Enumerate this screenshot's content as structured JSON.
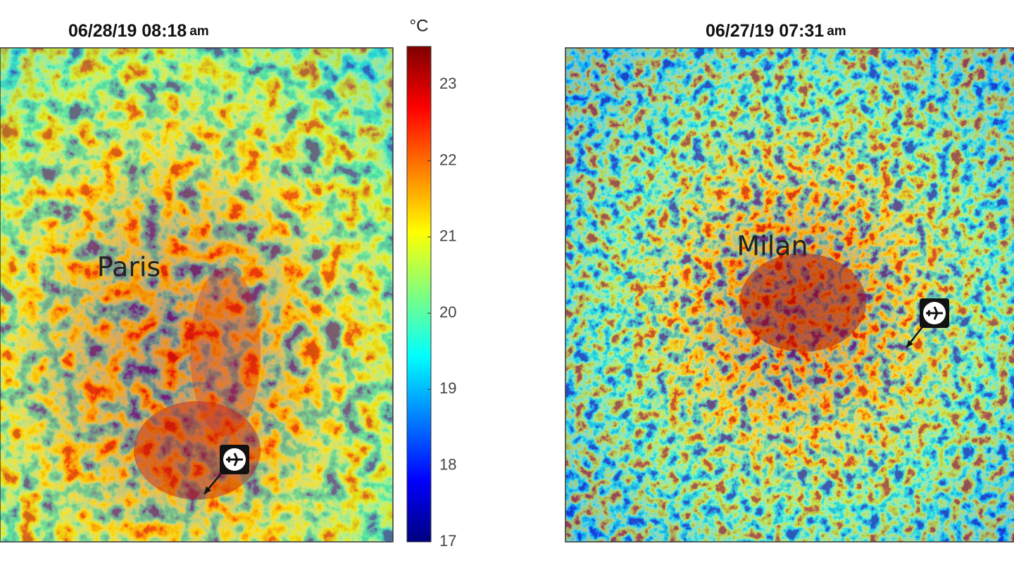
{
  "panels": [
    {
      "title": "06/28/19 08:18",
      "title_suffix": "am",
      "label": "Paris"
    },
    {
      "title": "06/27/19 07:31",
      "title_suffix": "am",
      "label": "Milan"
    }
  ],
  "colorbar": {
    "unit": "°C",
    "lim": [
      17,
      23.5
    ],
    "ticks": [
      17,
      18,
      19,
      20,
      21,
      22,
      23
    ]
  }
}
